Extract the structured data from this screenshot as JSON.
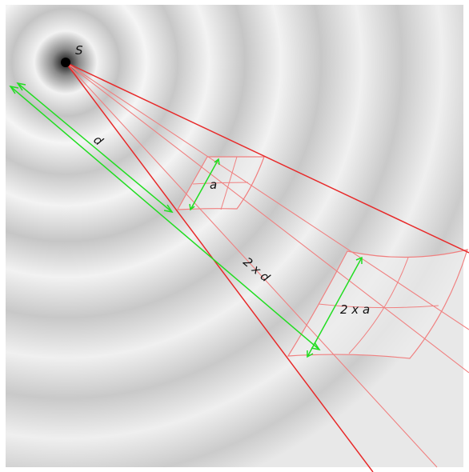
{
  "labels": {
    "source": "S",
    "distance": "d",
    "distance_double": "2 x d",
    "side": "a",
    "side_double": "2 x a"
  },
  "colors": {
    "rays": "#e82a2a",
    "patch_fill": "#ececec",
    "patch_edge": "#f08080",
    "dimension": "#22dd22",
    "source": "#000000"
  }
}
